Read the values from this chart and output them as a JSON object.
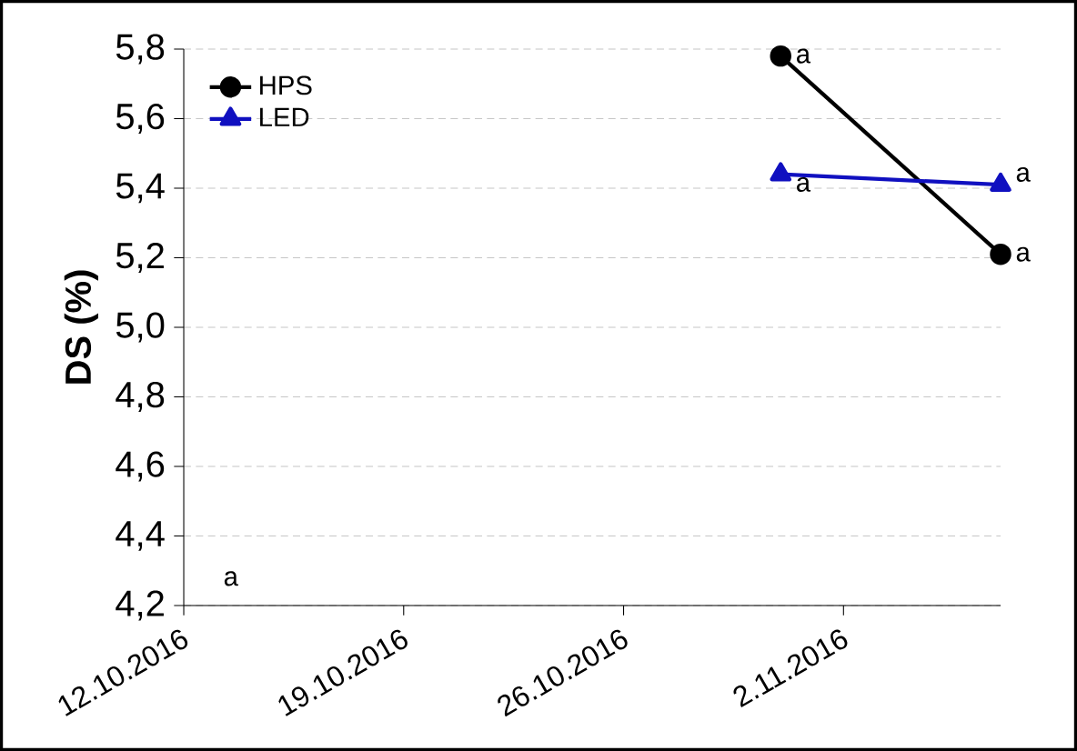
{
  "chart_data": {
    "type": "line",
    "ylabel": "DS (%)",
    "xlim": [
      "2016-10-12",
      "2016-11-07"
    ],
    "xticks": [
      {
        "value": "2016-10-12",
        "label": "12.10.2016"
      },
      {
        "value": "2016-10-19",
        "label": "19.10.2016"
      },
      {
        "value": "2016-10-26",
        "label": "26.10.2016"
      },
      {
        "value": "2016-11-02",
        "label": "2.11.2016"
      }
    ],
    "ylim": [
      4.2,
      5.8
    ],
    "yticks": [
      {
        "value": 4.2,
        "label": "4,2"
      },
      {
        "value": 4.4,
        "label": "4,4"
      },
      {
        "value": 4.6,
        "label": "4,6"
      },
      {
        "value": 4.8,
        "label": "4,8"
      },
      {
        "value": 5.0,
        "label": "5,0"
      },
      {
        "value": 5.2,
        "label": "5,2"
      },
      {
        "value": 5.4,
        "label": "5,4"
      },
      {
        "value": 5.6,
        "label": "5,6"
      },
      {
        "value": 5.8,
        "label": "5,8"
      }
    ],
    "x": [
      "2016-10-31",
      "2016-11-07"
    ],
    "series": [
      {
        "name": "HPS",
        "color": "#000000",
        "marker": "circle",
        "values": [
          5.78,
          5.21
        ]
      },
      {
        "name": "LED",
        "color": "#1010c0",
        "marker": "triangle",
        "values": [
          5.44,
          5.41
        ]
      }
    ],
    "annotations": [
      {
        "text": "a",
        "x": "2016-10-31",
        "y": 5.78
      },
      {
        "text": "a",
        "x": "2016-10-31",
        "y": 5.44
      },
      {
        "text": "a",
        "x": "2016-11-07",
        "y": 5.41
      },
      {
        "text": "a",
        "x": "2016-11-07",
        "y": 5.21
      },
      "a"
    ],
    "grid": "y",
    "legend": "top left",
    "line_style": "solid"
  }
}
